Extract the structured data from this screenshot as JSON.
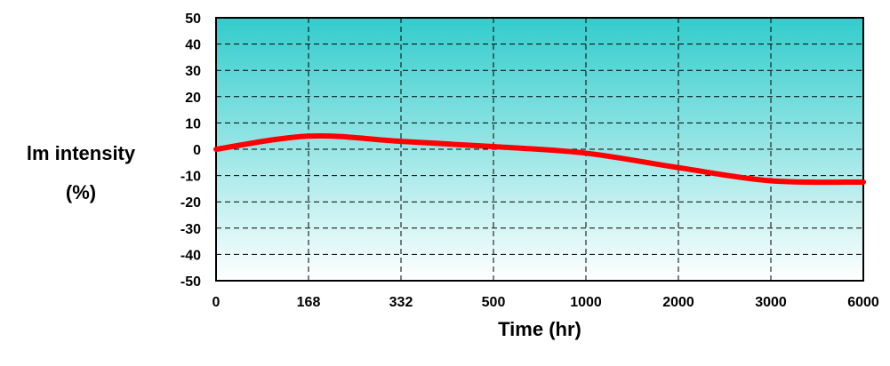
{
  "chart_data": {
    "type": "line",
    "xlabel": "Time (hr)",
    "ylabel": [
      "lm intensity",
      "(%)"
    ],
    "categories": [
      "0",
      "168",
      "332",
      "500",
      "1000",
      "2000",
      "3000",
      "6000"
    ],
    "ylim": [
      -50,
      50
    ],
    "yticks": [
      50,
      40,
      30,
      20,
      10,
      0,
      -10,
      -20,
      -30,
      -40,
      -50
    ],
    "grid": true,
    "series": [
      {
        "color": "#ff0000",
        "points": [
          {
            "x": "0",
            "y": 0
          },
          {
            "x": "168",
            "y": 5
          },
          {
            "x": "332",
            "y": 3
          },
          {
            "x": "500",
            "y": 1
          },
          {
            "x": "1000",
            "y": -1.5
          },
          {
            "x": "2000",
            "y": -7
          },
          {
            "x": "3000",
            "y": -12
          },
          {
            "x": "6000",
            "y": -12.5
          }
        ]
      }
    ],
    "colors": {
      "plot_fill_top": "#33cccc",
      "plot_fill_bottom": "#ffffff",
      "line": "#ff0000"
    }
  }
}
